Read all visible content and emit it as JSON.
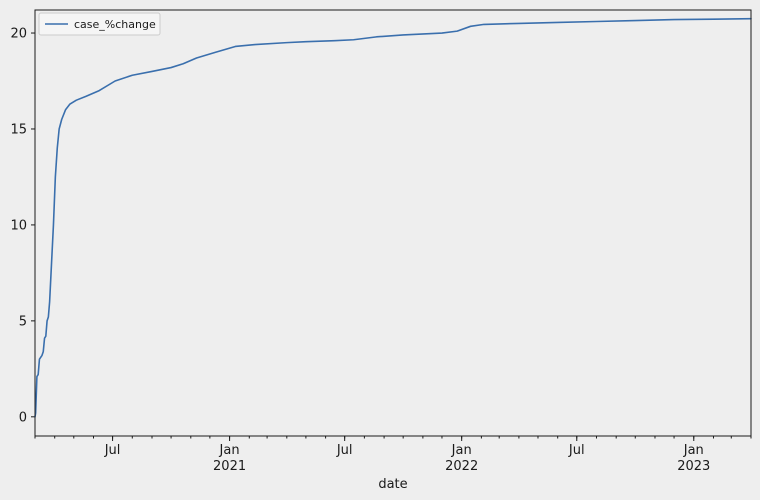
{
  "chart_data": {
    "type": "line",
    "xlabel": "date",
    "ylabel": "",
    "x_range": [
      "2020-03-01",
      "2023-04-01"
    ],
    "ylim": [
      -1.0,
      21.2
    ],
    "y_ticks": [
      0,
      5,
      10,
      15,
      20
    ],
    "x_ticks": [
      {
        "date": "2020-07-01",
        "label": "Jul",
        "sublabel": ""
      },
      {
        "date": "2021-01-01",
        "label": "Jan",
        "sublabel": "2021"
      },
      {
        "date": "2021-07-01",
        "label": "Jul",
        "sublabel": ""
      },
      {
        "date": "2022-01-01",
        "label": "Jan",
        "sublabel": "2022"
      },
      {
        "date": "2022-07-01",
        "label": "Jul",
        "sublabel": ""
      },
      {
        "date": "2023-01-01",
        "label": "Jan",
        "sublabel": "2023"
      }
    ],
    "minor_tick_months": 1,
    "grid": false,
    "legend_position": "top-left",
    "series": [
      {
        "name": "case_%change",
        "color": "#3a6fad",
        "points": [
          [
            "2020-03-01",
            0.0
          ],
          [
            "2020-03-02",
            0.2
          ],
          [
            "2020-03-04",
            2.1
          ],
          [
            "2020-03-06",
            2.2
          ],
          [
            "2020-03-08",
            3.0
          ],
          [
            "2020-03-10",
            3.1
          ],
          [
            "2020-03-12",
            3.2
          ],
          [
            "2020-03-14",
            3.4
          ],
          [
            "2020-03-16",
            4.1
          ],
          [
            "2020-03-18",
            4.2
          ],
          [
            "2020-03-20",
            5.0
          ],
          [
            "2020-03-22",
            5.2
          ],
          [
            "2020-03-24",
            6.0
          ],
          [
            "2020-03-27",
            8.0
          ],
          [
            "2020-03-30",
            10.0
          ],
          [
            "2020-04-02",
            12.5
          ],
          [
            "2020-04-05",
            14.0
          ],
          [
            "2020-04-08",
            15.0
          ],
          [
            "2020-04-12",
            15.5
          ],
          [
            "2020-04-18",
            16.0
          ],
          [
            "2020-04-25",
            16.3
          ],
          [
            "2020-05-05",
            16.5
          ],
          [
            "2020-05-20",
            16.7
          ],
          [
            "2020-06-10",
            17.0
          ],
          [
            "2020-07-05",
            17.5
          ],
          [
            "2020-08-01",
            17.8
          ],
          [
            "2020-09-01",
            18.0
          ],
          [
            "2020-10-01",
            18.2
          ],
          [
            "2020-10-20",
            18.4
          ],
          [
            "2020-11-10",
            18.7
          ],
          [
            "2020-12-10",
            19.0
          ],
          [
            "2021-01-10",
            19.3
          ],
          [
            "2021-02-10",
            19.4
          ],
          [
            "2021-04-01",
            19.5
          ],
          [
            "2021-05-01",
            19.55
          ],
          [
            "2021-06-15",
            19.6
          ],
          [
            "2021-07-15",
            19.65
          ],
          [
            "2021-08-20",
            19.8
          ],
          [
            "2021-10-01",
            19.9
          ],
          [
            "2021-12-01",
            20.0
          ],
          [
            "2021-12-25",
            20.1
          ],
          [
            "2022-01-15",
            20.35
          ],
          [
            "2022-02-05",
            20.45
          ],
          [
            "2022-04-01",
            20.5
          ],
          [
            "2022-06-01",
            20.55
          ],
          [
            "2022-08-01",
            20.6
          ],
          [
            "2022-10-01",
            20.65
          ],
          [
            "2022-12-01",
            20.7
          ],
          [
            "2023-02-01",
            20.72
          ],
          [
            "2023-04-01",
            20.75
          ]
        ]
      }
    ]
  }
}
